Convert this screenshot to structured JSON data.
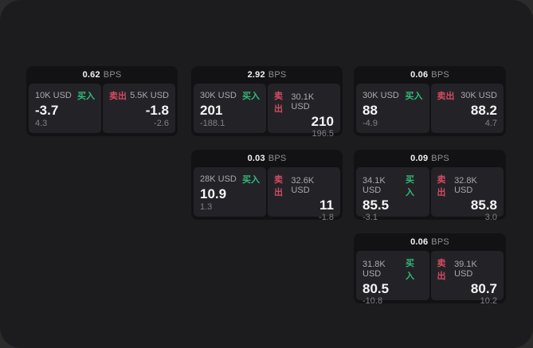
{
  "colors": {
    "outer_background": "#2b2b2b",
    "panel_background": "#1c1c1e",
    "card_background": "#121214",
    "tile_background": "#232327",
    "buy_green": "#32ba78",
    "sell_red": "#d44a63",
    "primary_text": "#f5f5f6",
    "secondary_text": "#a8a9ad",
    "muted_text": "#7f8085"
  },
  "cards": [
    {
      "bps": "0.62",
      "unit": "BPS",
      "buy_notional": "10K USD",
      "buy_label": "买入",
      "buy_price": "-3.7",
      "buy_delta": "4.3",
      "sell_label": "卖出",
      "sell_notional": "5.5K USD",
      "sell_price": "-1.8",
      "sell_delta": "-2.6"
    },
    {
      "bps": "2.92",
      "unit": "BPS",
      "buy_notional": "30K USD",
      "buy_label": "买入",
      "buy_price": "201",
      "buy_delta": "-188.1",
      "sell_label": "卖出",
      "sell_notional": "30.1K USD",
      "sell_price": "210",
      "sell_delta": "196.5"
    },
    {
      "bps": "0.03",
      "unit": "BPS",
      "buy_notional": "28K USD",
      "buy_label": "买入",
      "buy_price": "10.9",
      "buy_delta": "1.3",
      "sell_label": "卖出",
      "sell_notional": "32.6K USD",
      "sell_price": "11",
      "sell_delta": "-1.8"
    },
    {
      "bps": "0.06",
      "unit": "BPS",
      "buy_notional": "30K USD",
      "buy_label": "买入",
      "buy_price": "88",
      "buy_delta": "-4.9",
      "sell_label": "卖出",
      "sell_notional": "30K USD",
      "sell_price": "88.2",
      "sell_delta": "4.7"
    },
    {
      "bps": "0.09",
      "unit": "BPS",
      "buy_notional": "34.1K USD",
      "buy_label": "买入",
      "buy_price": "85.5",
      "buy_delta": "-3.1",
      "sell_label": "卖出",
      "sell_notional": "32.8K USD",
      "sell_price": "85.8",
      "sell_delta": "3.0"
    },
    {
      "bps": "0.06",
      "unit": "BPS",
      "buy_notional": "31.8K USD",
      "buy_label": "买入",
      "buy_price": "80.5",
      "buy_delta": "-10.8",
      "sell_label": "卖出",
      "sell_notional": "39.1K USD",
      "sell_price": "80.7",
      "sell_delta": "10.2"
    }
  ]
}
